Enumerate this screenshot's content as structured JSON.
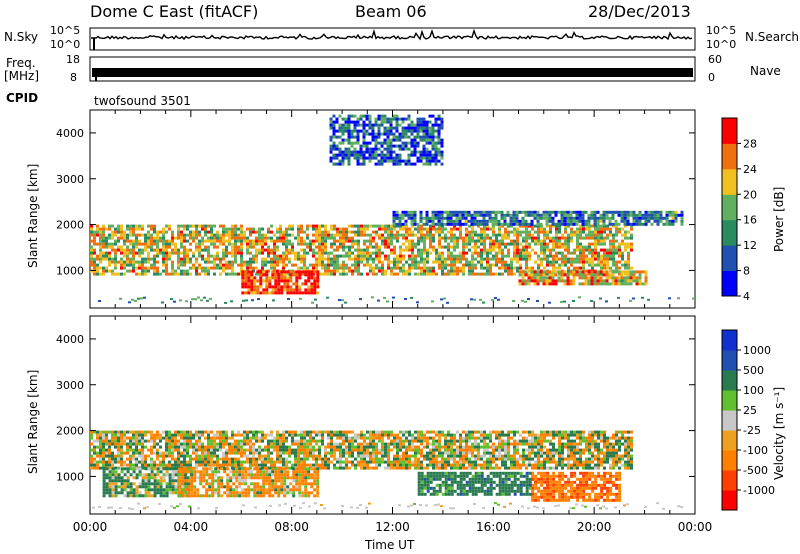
{
  "header": {
    "station": "Dome C East (fitACF)",
    "beam": "Beam 06",
    "date": "28/Dec/2013"
  },
  "top_panels": {
    "nsky_label": "N.Sky",
    "nsky_ticks": [
      "10^5",
      "10^0"
    ],
    "nsearch_label": "N.Search",
    "nsearch_ticks": [
      "10^5",
      "10^0"
    ],
    "freq_label": "Freq.",
    "freq_unit": "[MHz]",
    "freq_ticks": [
      "18",
      "8"
    ],
    "nave_label": "Nave",
    "nave_ticks": [
      "60",
      "0"
    ],
    "cpid_label": "CPID",
    "cpid_value": "twofsound 3501"
  },
  "chart_data": [
    {
      "type": "heatmap",
      "name": "power-panel",
      "ylabel": "Slant Range [km]",
      "yticks": [
        1000,
        2000,
        3000,
        4000
      ],
      "ylim": [
        180,
        4500
      ],
      "xlim": [
        0,
        24
      ],
      "colorbar": {
        "label": "Power [dB]",
        "ticks": [
          "28",
          "24",
          "20",
          "16",
          "12",
          "8",
          "4"
        ],
        "colors": [
          "#0000ff",
          "#2050b0",
          "#2a8a60",
          "#60b060",
          "#f0c020",
          "#f07010",
          "#ff0000"
        ]
      },
      "bands": [
        {
          "range_km": [
            900,
            2000
          ],
          "hours": [
            0,
            21.5
          ],
          "power_db": 18
        },
        {
          "range_km": [
            500,
            1000
          ],
          "hours": [
            6,
            9
          ],
          "power_db": 26
        },
        {
          "range_km": [
            700,
            1000
          ],
          "hours": [
            17,
            22
          ],
          "power_db": 20
        },
        {
          "range_km": [
            2000,
            2300
          ],
          "hours": [
            12,
            23.5
          ],
          "power_db": 10
        },
        {
          "range_km": [
            3300,
            4400
          ],
          "hours": [
            9.5,
            14
          ],
          "power_db": 8
        }
      ]
    },
    {
      "type": "heatmap",
      "name": "velocity-panel",
      "ylabel": "Slant Range [km]",
      "yticks": [
        1000,
        2000,
        3000,
        4000
      ],
      "ylim": [
        180,
        4500
      ],
      "xlim": [
        0,
        24
      ],
      "xticks": [
        "00:00",
        "04:00",
        "08:00",
        "12:00",
        "16:00",
        "20:00",
        "00:00"
      ],
      "xlabel": "Time UT",
      "colorbar": {
        "label": "Velocity [m s⁻¹]",
        "ticks": [
          "1000",
          "500",
          "100",
          "25",
          "-25",
          "-100",
          "-500",
          "-1000"
        ],
        "colors": [
          "#ff0000",
          "#ff4000",
          "#ff8000",
          "#f0a020",
          "#c8c8c8",
          "#60c030",
          "#2a7a50",
          "#2050b0",
          "#1030d0"
        ]
      },
      "bands": [
        {
          "range_km": [
            1200,
            2000
          ],
          "hours": [
            0,
            21.5
          ],
          "velocity": 0
        },
        {
          "range_km": [
            600,
            1200
          ],
          "hours": [
            0.5,
            4
          ],
          "velocity": 150
        },
        {
          "range_km": [
            600,
            1200
          ],
          "hours": [
            3.5,
            9
          ],
          "velocity": -120
        },
        {
          "range_km": [
            500,
            1100
          ],
          "hours": [
            17.5,
            21
          ],
          "velocity": -400
        },
        {
          "range_km": [
            600,
            1100
          ],
          "hours": [
            13,
            17.5
          ],
          "velocity": 300
        }
      ]
    }
  ]
}
